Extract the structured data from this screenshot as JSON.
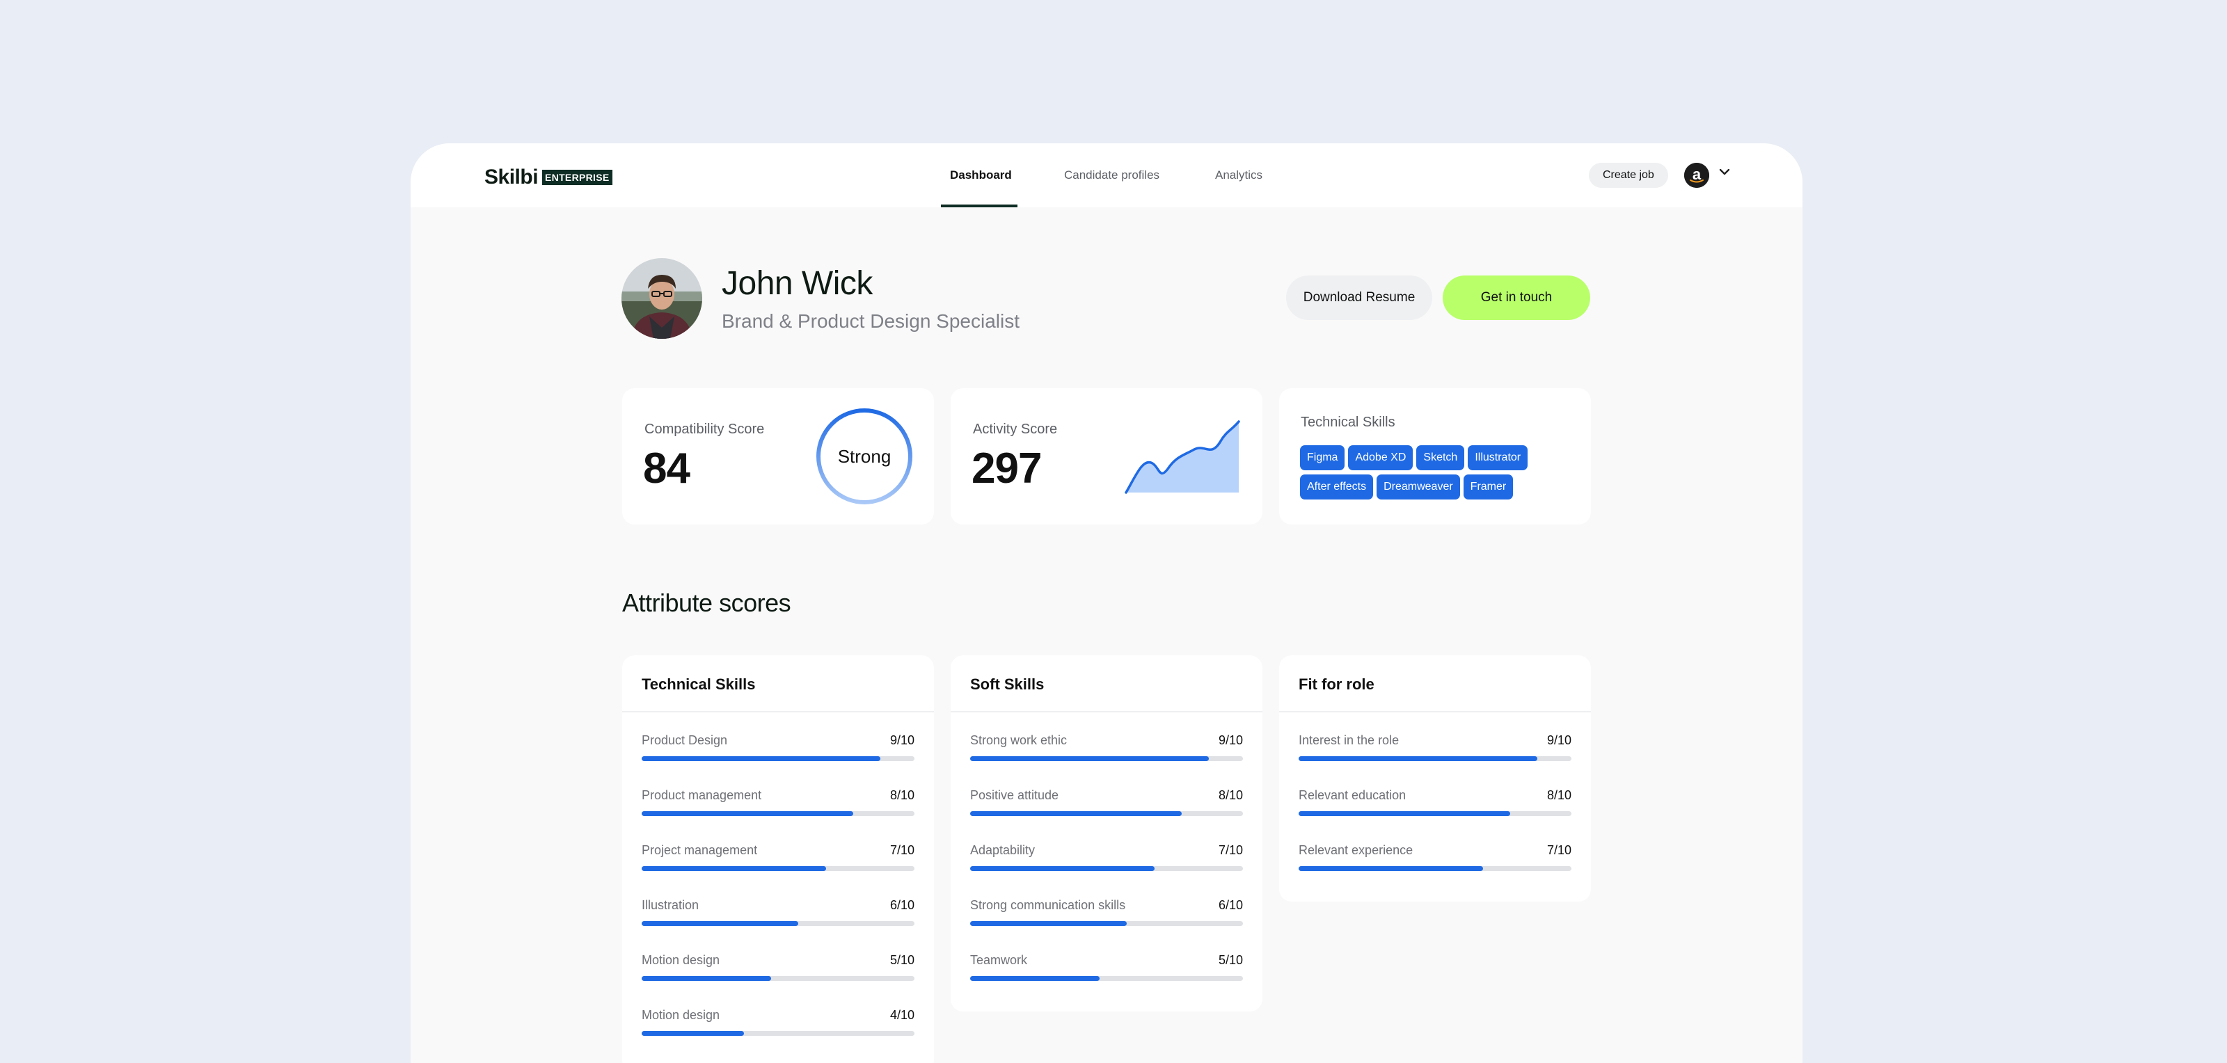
{
  "brand": {
    "name": "Skilbi",
    "badge": "ENTERPRISE"
  },
  "nav": {
    "tabs": [
      {
        "label": "Dashboard",
        "active": true
      },
      {
        "label": "Candidate profiles",
        "active": false
      },
      {
        "label": "Analytics",
        "active": false
      }
    ]
  },
  "header_actions": {
    "create_job": "Create job",
    "account_icon": "amazon-logo",
    "menu_icon": "chevron-down-icon"
  },
  "profile": {
    "name": "John Wick",
    "role": "Brand & Product Design Specialist",
    "download_label": "Download Resume",
    "contact_label": "Get in touch"
  },
  "summary": {
    "compatibility": {
      "label": "Compatibility Score",
      "value": "84",
      "ring_label": "Strong"
    },
    "activity": {
      "label": "Activity Score",
      "value": "297"
    },
    "technical": {
      "label": "Technical Skills",
      "skills": [
        "Figma",
        "Adobe XD",
        "Sketch",
        "Illustrator",
        "After effects",
        "Dreamweaver",
        "Framer"
      ]
    }
  },
  "attributes": {
    "title": "Attribute scores",
    "groups": [
      {
        "title": "Technical Skills",
        "items": [
          {
            "label": "Product Design",
            "score": "9/10",
            "value": 9
          },
          {
            "label": "Product management",
            "score": "8/10",
            "value": 8
          },
          {
            "label": "Project management",
            "score": "7/10",
            "value": 7
          },
          {
            "label": "Illustration",
            "score": "6/10",
            "value": 6
          },
          {
            "label": "Motion design",
            "score": "5/10",
            "value": 5
          },
          {
            "label": "Motion design",
            "score": "4/10",
            "value": 4
          }
        ]
      },
      {
        "title": "Soft Skills",
        "items": [
          {
            "label": "Strong work ethic",
            "score": "9/10",
            "value": 9
          },
          {
            "label": "Positive attitude",
            "score": "8/10",
            "value": 8
          },
          {
            "label": "Adaptability",
            "score": "7/10",
            "value": 7
          },
          {
            "label": "Strong communication skills",
            "score": "6/10",
            "value": 6
          },
          {
            "label": "Teamwork",
            "score": "5/10",
            "value": 5
          }
        ]
      },
      {
        "title": "Fit for role",
        "items": [
          {
            "label": "Interest in the role",
            "score": "9/10",
            "value": 9
          },
          {
            "label": "Relevant education",
            "score": "8/10",
            "value": 8
          },
          {
            "label": "Relevant experience",
            "score": "7/10",
            "value": 7
          }
        ]
      }
    ]
  },
  "colors": {
    "accent": "#1f6ae4",
    "cta": "#b8ff6a",
    "brand_dark": "#0e2d24",
    "background": "#e9edf5"
  }
}
